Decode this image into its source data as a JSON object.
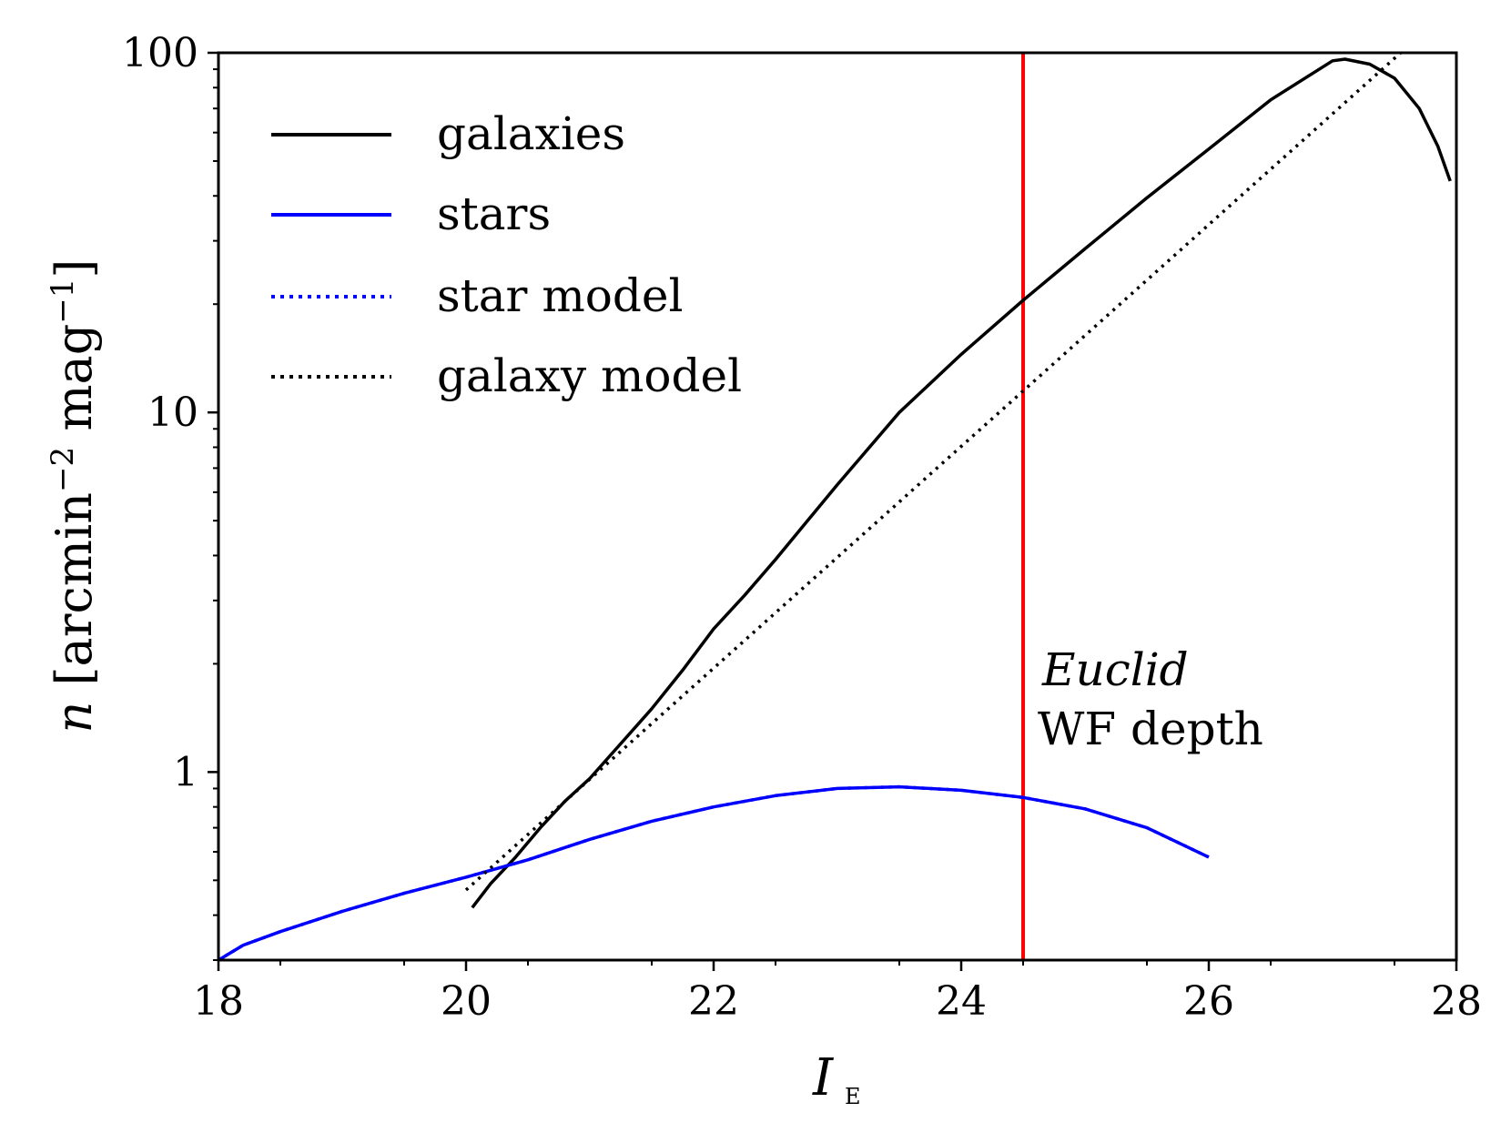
{
  "chart_data": {
    "type": "line",
    "xlabel": "I",
    "xlabel_subscript": "E",
    "ylabel": "n [arcmin^-2 mag^-1]",
    "ylabel_parts": {
      "var": "n",
      "open": "[arcmin",
      "exp1": "−2",
      "mid": "mag",
      "exp2": "−1",
      "close": "]"
    },
    "xlim": [
      18,
      28
    ],
    "ylim": [
      0.3,
      100
    ],
    "yscale": "log",
    "xticks": [
      "18",
      "20",
      "22",
      "24",
      "26",
      "28"
    ],
    "xtick_values": [
      18,
      20,
      22,
      24,
      26,
      28
    ],
    "yticks": [
      "1",
      "10",
      "100"
    ],
    "ytick_values": [
      1,
      10,
      100
    ],
    "legend_position": "top-left",
    "series": [
      {
        "name": "galaxies",
        "style": "solid",
        "color": "#000000",
        "x": [
          20.05,
          20.2,
          20.4,
          20.6,
          20.8,
          21.0,
          21.25,
          21.5,
          21.75,
          22.0,
          22.25,
          22.5,
          23.0,
          23.5,
          24.0,
          24.5,
          25.0,
          25.5,
          26.0,
          26.5,
          27.0,
          27.1,
          27.3,
          27.5,
          27.7,
          27.85,
          27.95
        ],
        "y": [
          0.42,
          0.49,
          0.58,
          0.7,
          0.83,
          0.96,
          1.2,
          1.5,
          1.92,
          2.5,
          3.1,
          3.9,
          6.3,
          10.0,
          14.5,
          20.5,
          28.5,
          39.5,
          54.0,
          74.0,
          95.0,
          96.0,
          93.0,
          85.0,
          70.0,
          55.0,
          44.0
        ]
      },
      {
        "name": "stars",
        "style": "solid",
        "color": "#0000ff",
        "x": [
          18.0,
          18.2,
          18.5,
          19.0,
          19.5,
          20.0,
          20.5,
          21.0,
          21.5,
          22.0,
          22.5,
          23.0,
          23.5,
          24.0,
          24.5,
          25.0,
          25.5,
          26.0
        ],
        "y": [
          0.3,
          0.33,
          0.36,
          0.41,
          0.46,
          0.51,
          0.57,
          0.65,
          0.73,
          0.8,
          0.86,
          0.9,
          0.91,
          0.89,
          0.85,
          0.79,
          0.7,
          0.58
        ]
      },
      {
        "name": "star model",
        "style": "dotted",
        "color": "#0000ff",
        "x": [
          18.0,
          18.2,
          18.5,
          19.0,
          19.5,
          20.0,
          20.5,
          21.0,
          21.5,
          22.0,
          22.5,
          23.0,
          23.5,
          24.0,
          24.5,
          25.0,
          25.5,
          26.0
        ],
        "y": [
          0.3,
          0.33,
          0.36,
          0.41,
          0.46,
          0.51,
          0.57,
          0.65,
          0.73,
          0.8,
          0.86,
          0.9,
          0.91,
          0.89,
          0.85,
          0.79,
          0.7,
          0.58
        ]
      },
      {
        "name": "galaxy model",
        "style": "dotted",
        "color": "#000000",
        "x": [
          20.0,
          27.55
        ],
        "y": [
          0.47,
          100.0
        ]
      }
    ],
    "vline": {
      "x": 24.5,
      "color": "#ff0000"
    },
    "annotations": {
      "line1": "Euclid",
      "line2": "WF depth"
    }
  }
}
